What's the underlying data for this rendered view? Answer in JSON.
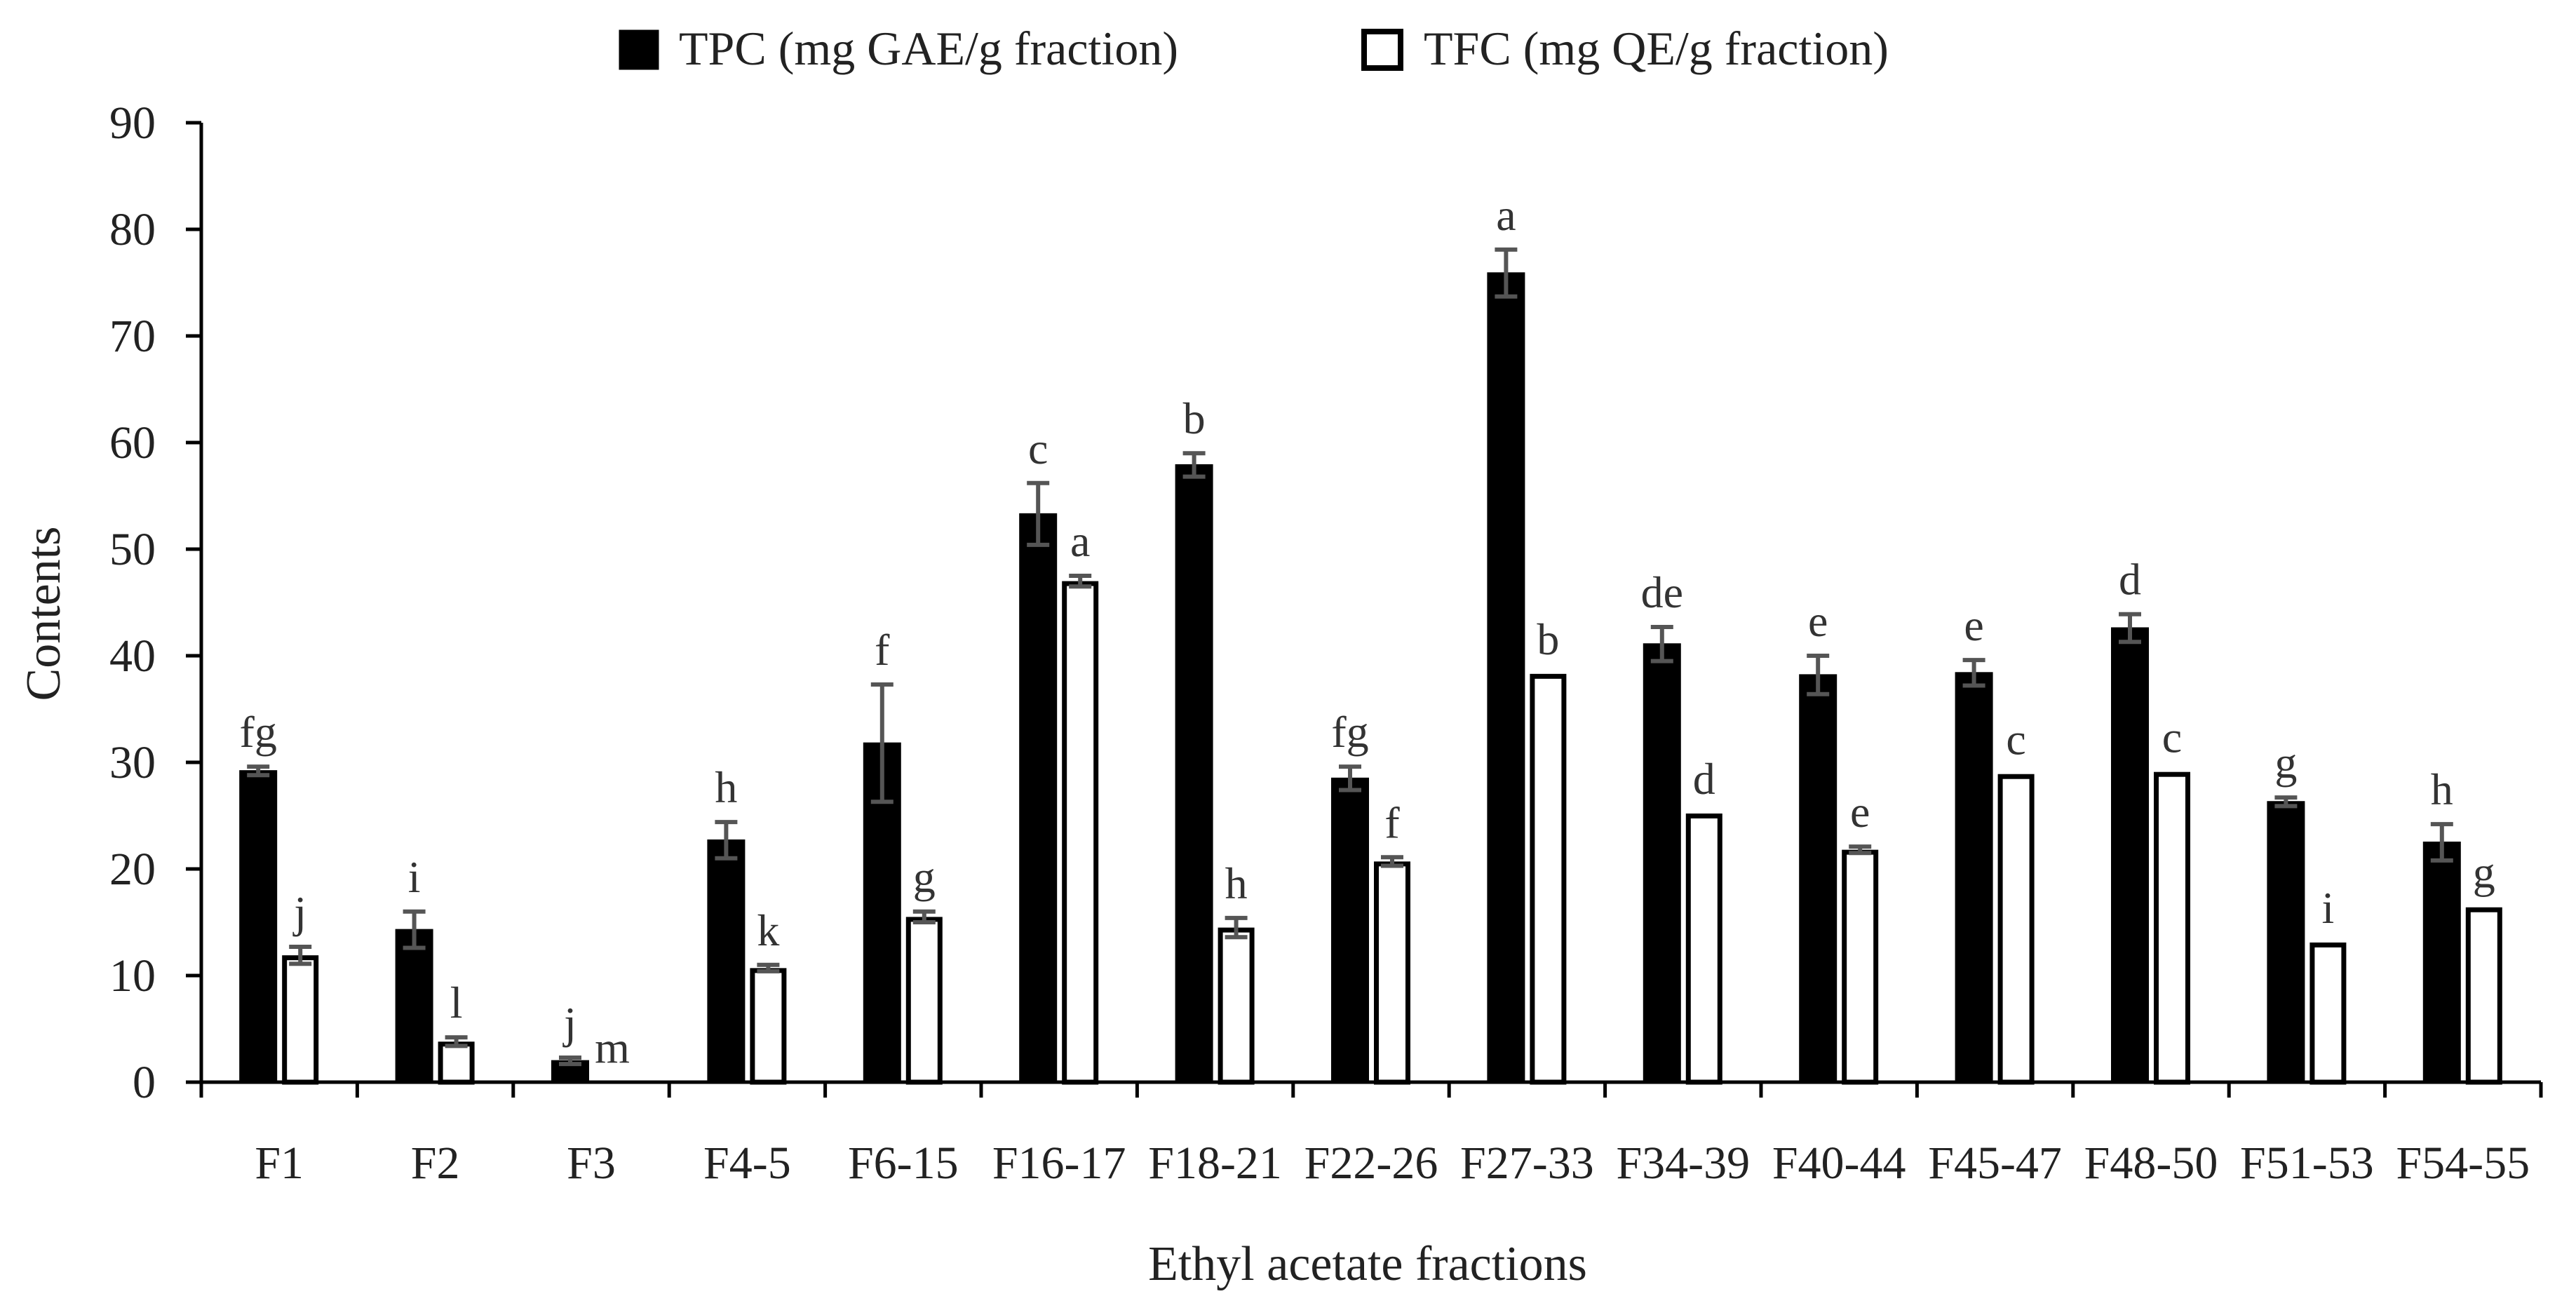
{
  "chart_data": {
    "type": "bar",
    "title": "",
    "xlabel": "Ethyl acetate fractions",
    "ylabel": "Contents",
    "ylim": [
      0,
      90
    ],
    "yticks": [
      0,
      10,
      20,
      30,
      40,
      50,
      60,
      70,
      80,
      90
    ],
    "legend_position": "top-center",
    "categories": [
      "F1",
      "F2",
      "F3",
      "F4-5",
      "F6-15",
      "F16-17",
      "F18-21",
      "F22-26",
      "F27-33",
      "F34-39",
      "F40-44",
      "F45-47",
      "F48-50",
      "F51-53",
      "F54-55"
    ],
    "series": [
      {
        "name": "TPC (mg GAE/g fraction)",
        "fill": "#000000",
        "stroke": "#000000",
        "values": [
          29.2,
          14.3,
          2.0,
          22.7,
          31.8,
          53.3,
          57.9,
          28.5,
          75.9,
          41.1,
          38.2,
          38.4,
          42.6,
          26.3,
          22.5
        ],
        "errors": [
          0.4,
          1.7,
          0.3,
          1.7,
          5.5,
          2.9,
          1.1,
          1.1,
          2.2,
          1.6,
          1.8,
          1.2,
          1.3,
          0.4,
          1.7
        ],
        "labels": [
          "fg",
          "i",
          "j",
          "h",
          "f",
          "c",
          "b",
          "fg",
          "a",
          "de",
          "e",
          "e",
          "d",
          "g",
          "h"
        ]
      },
      {
        "name": "TFC (mg QE/g fraction)",
        "fill": "#ffffff",
        "stroke": "#000000",
        "values": [
          11.9,
          3.8,
          0,
          10.7,
          15.5,
          47.0,
          14.5,
          20.7,
          38.3,
          25.2,
          21.8,
          28.9,
          29.1,
          13.1,
          16.4
        ],
        "errors": [
          0.8,
          0.4,
          0,
          0.3,
          0.5,
          0.5,
          0.9,
          0.4,
          0,
          0,
          0.3,
          0,
          0,
          0,
          0
        ],
        "labels": [
          "j",
          "l",
          "m",
          "k",
          "g",
          "a",
          "h",
          "f",
          "b",
          "d",
          "e",
          "c",
          "c",
          "i",
          "g"
        ]
      }
    ]
  },
  "colors": {
    "axis": "#000000",
    "error_bar": "#555555",
    "text": "#222222"
  }
}
